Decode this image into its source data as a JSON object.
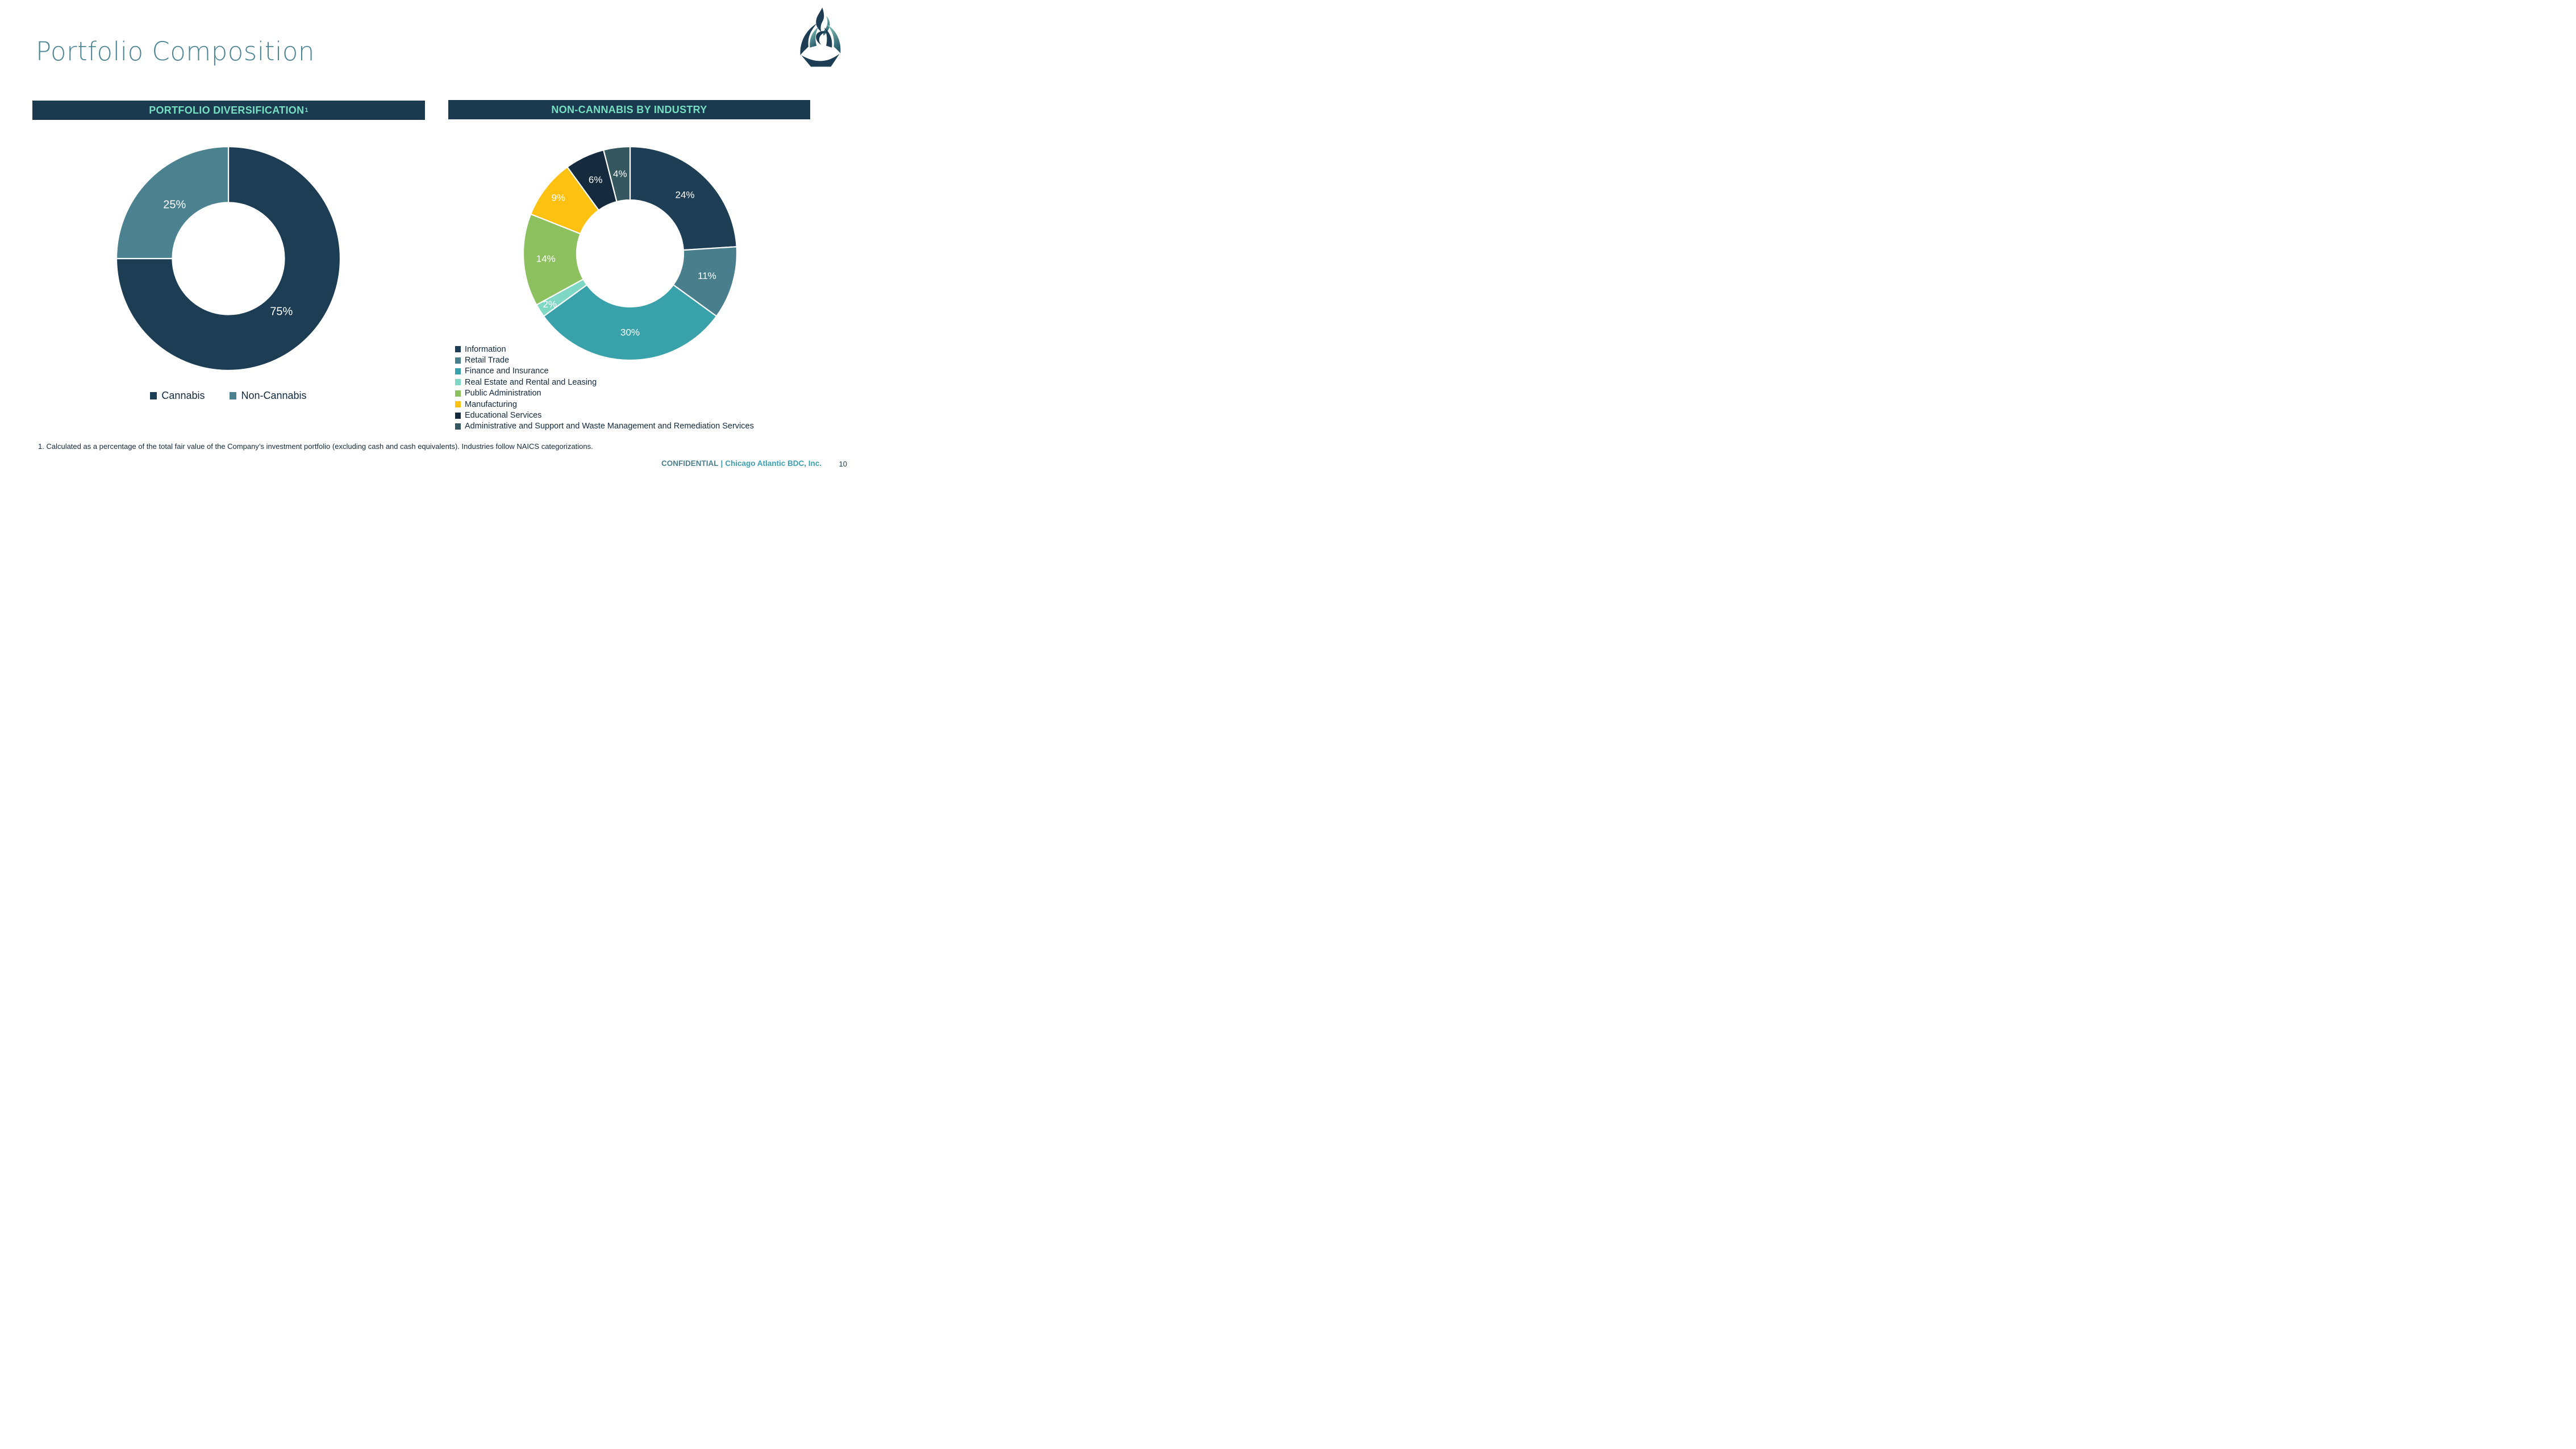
{
  "slide": {
    "title": "Portfolio Composition",
    "footnote": "1. Calculated as a percentage of the total fair value of the Company’s investment portfolio (excluding cash and cash equivalents). Industries follow NAICS categorizations.",
    "footer": {
      "confidential": "CONFIDENTIAL",
      "divider": "|",
      "company": "Chicago Atlantic BDC, Inc.",
      "page_number": "10"
    }
  },
  "colors": {
    "title_teal": "#4C8594",
    "header_bar_bg": "#1B3A4F",
    "header_text_mint": "#76DEC1",
    "body_text_navy": "#12283C",
    "footer_confidential": "#4E7F8C",
    "footer_company": "#3DA0B0",
    "slice_separator": "#FFFFFF"
  },
  "chart_data": [
    {
      "type": "pie",
      "subtype": "donut",
      "title": "PORTFOLIO DIVERSIFICATION",
      "title_superscript": "1",
      "hole_ratio": 0.5,
      "start_angle_deg": 0,
      "direction": "clockwise",
      "legend_position": "bottom-center",
      "data_labels": "percent-inside-white",
      "categories": [
        "Cannabis",
        "Non-Cannabis"
      ],
      "values": [
        75,
        25
      ],
      "labels": [
        "75%",
        "25%"
      ],
      "colors": [
        "#1C3D53",
        "#4C8290"
      ],
      "label_radius_factors": [
        0.67,
        0.68
      ]
    },
    {
      "type": "pie",
      "subtype": "donut",
      "title": "NON-CANNABIS BY INDUSTRY",
      "title_superscript": "",
      "hole_ratio": 0.5,
      "start_angle_deg": 0,
      "direction": "clockwise",
      "legend_position": "bottom-left",
      "data_labels": "percent-inside-white",
      "categories": [
        "Information",
        "Retail Trade",
        "Finance and Insurance",
        "Real Estate and Rental and Leasing",
        "Public Administration",
        "Manufacturing",
        "Educational Services",
        "Administrative and Support and Waste Management and Remediation Services"
      ],
      "values": [
        24,
        11,
        30,
        2,
        14,
        9,
        6,
        4
      ],
      "labels": [
        "24%",
        "11%",
        "30%",
        "2%",
        "14%",
        "9%",
        "6%",
        "4%"
      ],
      "colors": [
        "#1D3E54",
        "#497E8C",
        "#38A1AA",
        "#7ED8C3",
        "#8DC05F",
        "#FDC112",
        "#152B3D",
        "#35575F"
      ],
      "label_radius_factors": [
        0.75,
        0.75,
        0.74,
        0.89,
        0.79,
        0.85,
        0.76,
        0.75
      ]
    }
  ]
}
